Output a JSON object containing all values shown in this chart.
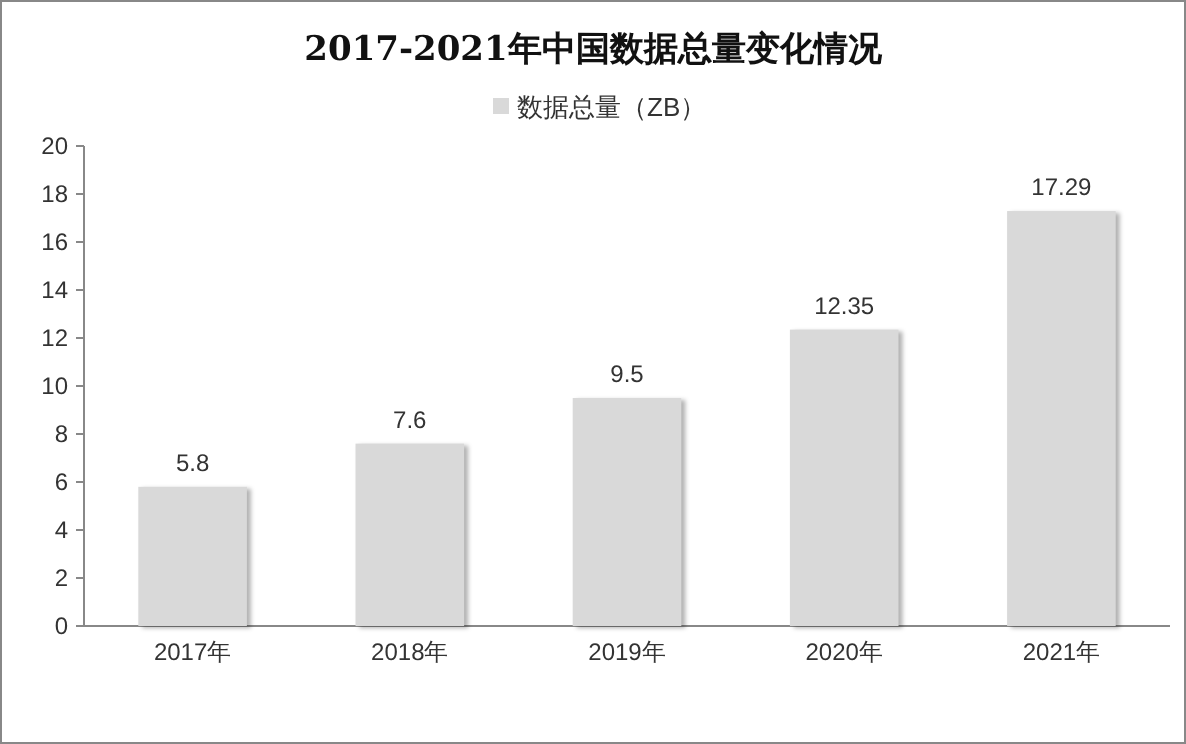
{
  "chart_data": {
    "type": "bar",
    "title": "2017-2021年中国数据总量变化情况",
    "categories": [
      "2017年",
      "2018年",
      "2019年",
      "2020年",
      "2021年"
    ],
    "series": [
      {
        "name": "数据总量（ZB）",
        "color": "#d9d9d9",
        "values": [
          5.8,
          7.6,
          9.5,
          12.35,
          17.29
        ]
      }
    ],
    "ylim": [
      0,
      20
    ],
    "yticks": [
      0,
      2,
      4,
      6,
      8,
      10,
      12,
      14,
      16,
      18,
      20
    ],
    "data_labels": true,
    "legend": "top",
    "grid": false
  }
}
